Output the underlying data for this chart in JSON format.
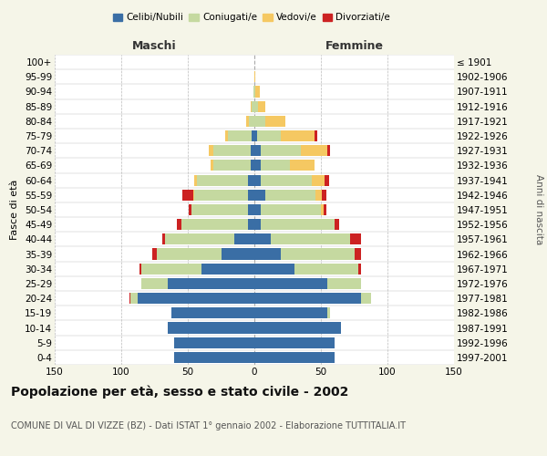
{
  "age_groups": [
    "0-4",
    "5-9",
    "10-14",
    "15-19",
    "20-24",
    "25-29",
    "30-34",
    "35-39",
    "40-44",
    "45-49",
    "50-54",
    "55-59",
    "60-64",
    "65-69",
    "70-74",
    "75-79",
    "80-84",
    "85-89",
    "90-94",
    "95-99",
    "100+"
  ],
  "birth_years": [
    "1997-2001",
    "1992-1996",
    "1987-1991",
    "1982-1986",
    "1977-1981",
    "1972-1976",
    "1967-1971",
    "1962-1966",
    "1957-1961",
    "1952-1956",
    "1947-1951",
    "1942-1946",
    "1937-1941",
    "1932-1936",
    "1927-1931",
    "1922-1926",
    "1917-1921",
    "1912-1916",
    "1907-1911",
    "1902-1906",
    "≤ 1901"
  ],
  "male": {
    "celibi": [
      60,
      60,
      65,
      62,
      88,
      65,
      40,
      25,
      15,
      5,
      5,
      5,
      5,
      3,
      3,
      2,
      0,
      0,
      0,
      0,
      0
    ],
    "coniugati": [
      0,
      0,
      0,
      0,
      5,
      20,
      45,
      48,
      52,
      50,
      42,
      40,
      38,
      28,
      28,
      18,
      4,
      2,
      1,
      0,
      0
    ],
    "vedovi": [
      0,
      0,
      0,
      0,
      0,
      0,
      0,
      0,
      0,
      0,
      0,
      1,
      2,
      2,
      3,
      2,
      2,
      1,
      0,
      0,
      0
    ],
    "divorziati": [
      0,
      0,
      0,
      0,
      1,
      0,
      1,
      4,
      2,
      3,
      2,
      8,
      0,
      0,
      0,
      0,
      0,
      0,
      0,
      0,
      0
    ]
  },
  "female": {
    "nubili": [
      60,
      60,
      65,
      55,
      80,
      55,
      30,
      20,
      12,
      5,
      5,
      8,
      5,
      5,
      5,
      2,
      0,
      0,
      0,
      0,
      0
    ],
    "coniugate": [
      0,
      0,
      0,
      2,
      8,
      25,
      48,
      55,
      60,
      55,
      45,
      38,
      38,
      22,
      30,
      18,
      8,
      3,
      1,
      0,
      0
    ],
    "vedove": [
      0,
      0,
      0,
      0,
      0,
      0,
      0,
      0,
      0,
      0,
      2,
      5,
      10,
      18,
      20,
      25,
      15,
      5,
      3,
      1,
      0
    ],
    "divorziate": [
      0,
      0,
      0,
      0,
      0,
      0,
      2,
      5,
      8,
      4,
      2,
      3,
      3,
      0,
      2,
      2,
      0,
      0,
      0,
      0,
      0
    ]
  },
  "colors": {
    "celibi": "#3a6ea5",
    "coniugati": "#c5d9a0",
    "vedovi": "#f5c862",
    "divorziati": "#cc2222"
  },
  "xlim": 150,
  "title": "Popolazione per età, sesso e stato civile - 2002",
  "subtitle": "COMUNE DI VAL DI VIZZE (BZ) - Dati ISTAT 1° gennaio 2002 - Elaborazione TUTTITALIA.IT",
  "ylabel_left": "Fasce di età",
  "ylabel_right": "Anni di nascita",
  "xlabel_maschi": "Maschi",
  "xlabel_femmine": "Femmine",
  "legend_labels": [
    "Celibi/Nubili",
    "Coniugati/e",
    "Vedovi/e",
    "Divorziati/e"
  ],
  "bg_color": "#f5f5e8",
  "plot_bg": "#ffffff",
  "grid_color": "#bbbbbb",
  "fontsize_ticks": 7.5,
  "fontsize_title": 10.0,
  "fontsize_subtitle": 7.0
}
